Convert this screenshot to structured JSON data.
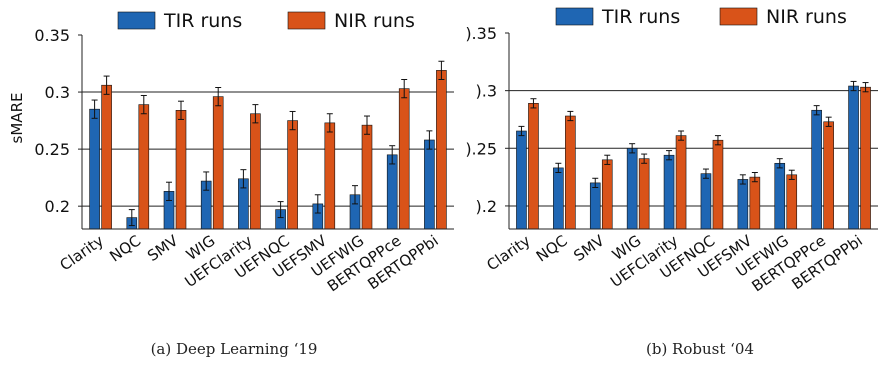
{
  "chart_data": [
    {
      "type": "bar",
      "caption": "(a) Deep Learning ‘19",
      "ylabel": "sMARE",
      "ylim": [
        0.18,
        0.35
      ],
      "yticks": [
        "0.35",
        "0.3",
        "0.25",
        "0.2"
      ],
      "categories": [
        "Clarity",
        "NQC",
        "SMV",
        "WIG",
        "UEFClarity",
        "UEFNQC",
        "UEFSMV",
        "UEFWIG",
        "BERTQPPce",
        "BERTQPPbi"
      ],
      "series": [
        {
          "name": "TIR runs",
          "color": "#1f66b3",
          "values": [
            0.285,
            0.19,
            0.213,
            0.222,
            0.224,
            0.197,
            0.202,
            0.21,
            0.245,
            0.258
          ],
          "errors": [
            0.008,
            0.007,
            0.008,
            0.008,
            0.008,
            0.007,
            0.008,
            0.008,
            0.008,
            0.008
          ]
        },
        {
          "name": "NIR runs",
          "color": "#d95319",
          "values": [
            0.306,
            0.289,
            0.284,
            0.296,
            0.281,
            0.275,
            0.273,
            0.271,
            0.303,
            0.319
          ],
          "errors": [
            0.008,
            0.008,
            0.008,
            0.008,
            0.008,
            0.008,
            0.008,
            0.008,
            0.008,
            0.008
          ]
        }
      ],
      "grid": "y",
      "legend": "top"
    },
    {
      "type": "bar",
      "caption": "(b) Robust ‘04",
      "ylabel": "",
      "ylim": [
        0.18,
        0.35
      ],
      "yticks": [
        ").35",
        ").3",
        ").25",
        ").2"
      ],
      "categories": [
        "Clarity",
        "NQC",
        "SMV",
        "WIG",
        "UEFClarity",
        "UEFNQC",
        "UEFSMV",
        "UEFWIG",
        "BERTQPPce",
        "BERTQPPbi"
      ],
      "series": [
        {
          "name": "TIR runs",
          "color": "#1f66b3",
          "values": [
            0.265,
            0.233,
            0.22,
            0.25,
            0.244,
            0.228,
            0.223,
            0.237,
            0.283,
            0.304
          ],
          "errors": [
            0.004,
            0.004,
            0.004,
            0.004,
            0.004,
            0.004,
            0.004,
            0.004,
            0.004,
            0.004
          ]
        },
        {
          "name": "NIR runs",
          "color": "#d95319",
          "values": [
            0.289,
            0.278,
            0.24,
            0.241,
            0.261,
            0.257,
            0.225,
            0.227,
            0.273,
            0.303
          ],
          "errors": [
            0.004,
            0.004,
            0.004,
            0.004,
            0.004,
            0.004,
            0.004,
            0.004,
            0.004,
            0.004
          ]
        }
      ],
      "grid": "y",
      "legend": "top"
    }
  ]
}
